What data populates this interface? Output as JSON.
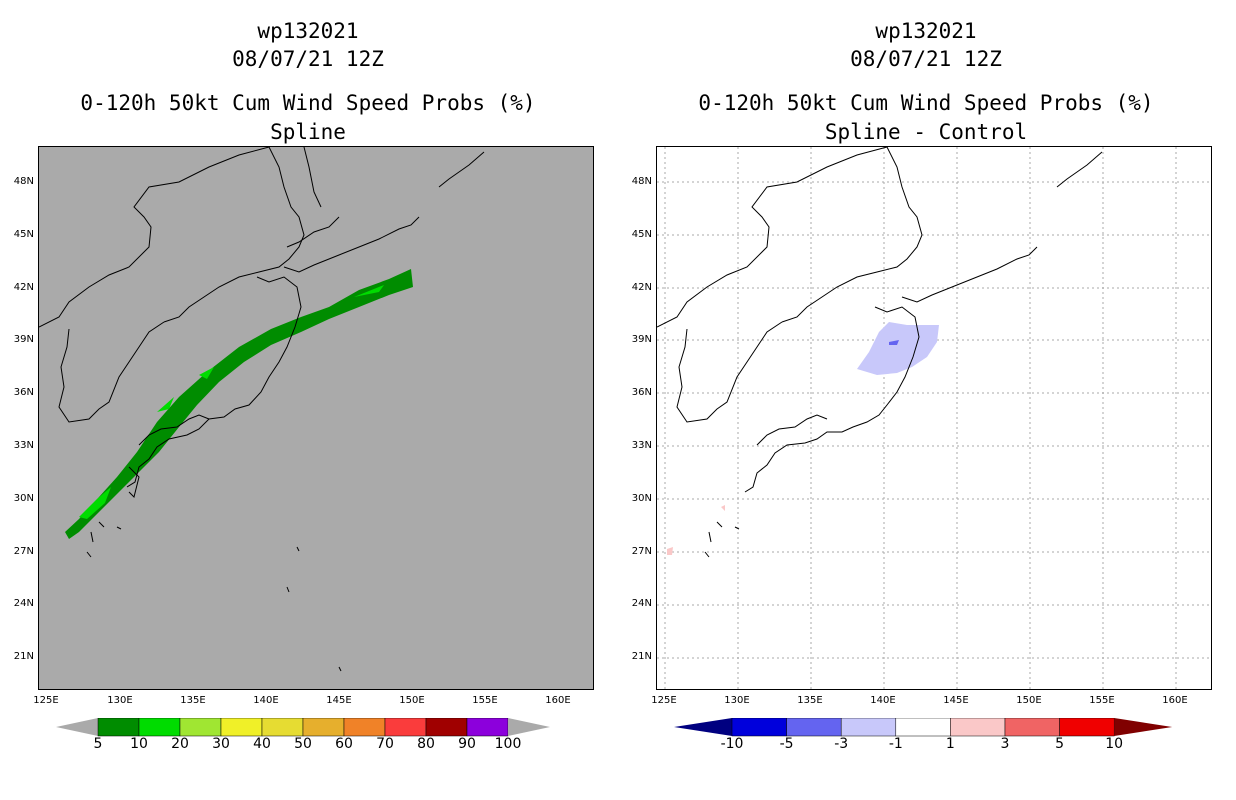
{
  "left_panel": {
    "storm_id": "wp132021",
    "datetime": "08/07/21 12Z",
    "product": "0-120h 50kt Cum Wind Speed Probs (%)",
    "subtitle": "Spline",
    "background": "#aaaaaa",
    "colorbar": {
      "colors": [
        "#008c00",
        "#00dc00",
        "#a0e632",
        "#f0f028",
        "#e6dc32",
        "#e6af2d",
        "#f08228",
        "#fa3c3c",
        "#a00000",
        "#8c00dc"
      ],
      "labels": [
        "5",
        "10",
        "20",
        "30",
        "40",
        "50",
        "60",
        "70",
        "80",
        "90",
        "100"
      ]
    }
  },
  "right_panel": {
    "storm_id": "wp132021",
    "datetime": "08/07/21 12Z",
    "product": "0-120h 50kt Cum Wind Speed Probs (%)",
    "subtitle": "Spline - Control",
    "background": "#ffffff",
    "colorbar": {
      "colors": [
        "#0000dc",
        "#6464f0",
        "#c8c8fa",
        "#ffffff",
        "#fac8c8",
        "#f06464",
        "#f00000"
      ],
      "end_low": "#000080",
      "end_high": "#800000",
      "labels": [
        "-10",
        "-5",
        "-3",
        "-1",
        "1",
        "3",
        "5",
        "10"
      ]
    }
  },
  "axes": {
    "lat_labels": [
      "48N",
      "45N",
      "42N",
      "39N",
      "36N",
      "33N",
      "30N",
      "27N",
      "24N",
      "21N"
    ],
    "lon_labels": [
      "125E",
      "130E",
      "135E",
      "140E",
      "145E",
      "150E",
      "155E",
      "160E"
    ]
  }
}
